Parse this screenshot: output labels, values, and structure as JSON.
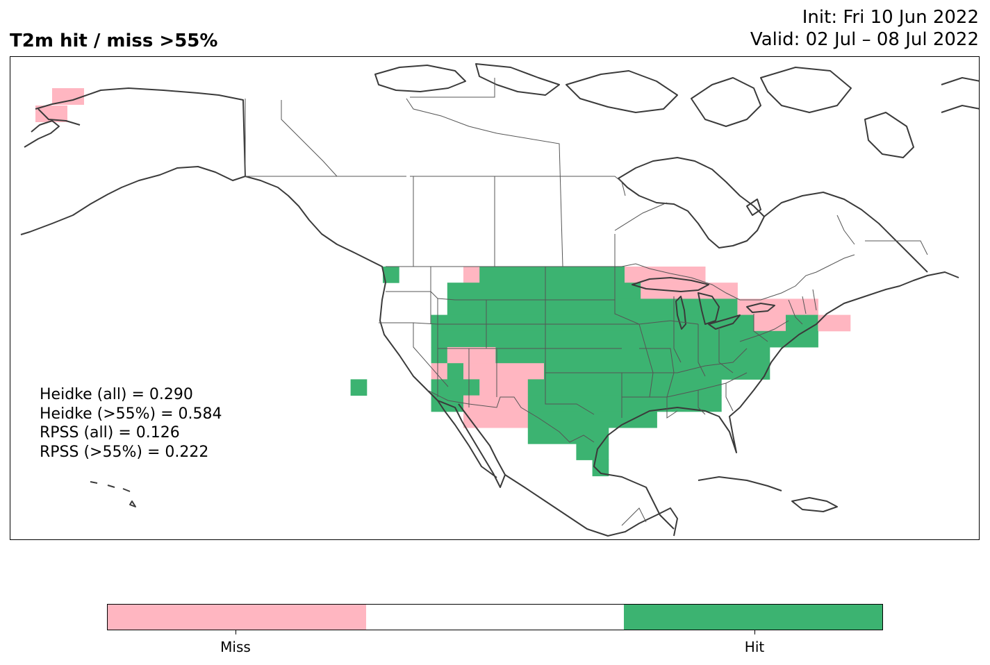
{
  "header": {
    "title": "T2m hit / miss  >55%",
    "init": "Init: Fri 10 Jun 2022",
    "valid": "Valid: 02 Jul – 08 Jul 2022"
  },
  "stats": [
    "Heidke (all) = 0.290",
    "Heidke (>55%) = 0.584",
    "RPSS (all) = 0.126",
    "RPSS (>55%) = 0.222"
  ],
  "colorbar": {
    "segments": [
      {
        "color": "#ffb6c1",
        "label": "Miss"
      },
      {
        "color": "#ffffff",
        "label": ""
      },
      {
        "color": "#3cb371",
        "label": "Hit"
      }
    ]
  },
  "colors": {
    "hit": "#3cb371",
    "miss": "#ffb6c1",
    "outline": "#3a3a3a"
  }
}
